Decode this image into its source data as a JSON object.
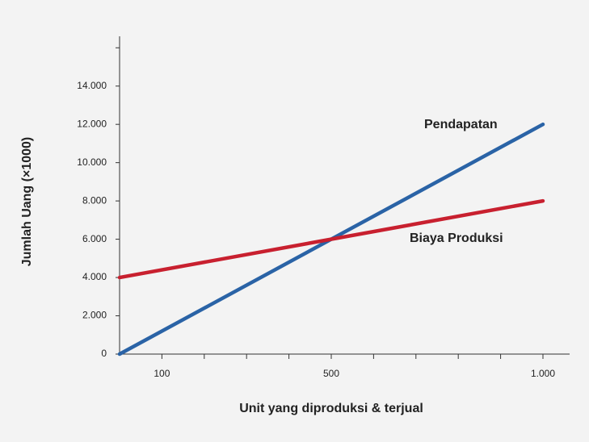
{
  "chart_data": {
    "type": "line",
    "x_label": "Unit yang diproduksi & terjual",
    "y_label": "Jumlah Uang (×1000)",
    "x": [
      0,
      1000
    ],
    "series": [
      {
        "name": "Pendapatan",
        "color": "#2a63a6",
        "values": [
          0,
          12000
        ]
      },
      {
        "name": "Biaya Produksi",
        "color": "#c8202f",
        "values": [
          4000,
          8000
        ]
      }
    ],
    "xlim": [
      0,
      1063
    ],
    "xticks": [
      100,
      500,
      {
        "value": 1000,
        "label": "1.000"
      }
    ],
    "x_minor_ticks": [
      200,
      300,
      400,
      600,
      700,
      800,
      900
    ],
    "ylim": [
      0,
      16600
    ],
    "yticks": [
      0,
      {
        "value": 2000,
        "label": "2.000"
      },
      {
        "value": 4000,
        "label": "4.000"
      },
      {
        "value": 6000,
        "label": "6.000"
      },
      {
        "value": 8000,
        "label": "8.000"
      },
      {
        "value": 10000,
        "label": "10.000"
      },
      {
        "value": 12000,
        "label": "12.000"
      },
      {
        "value": 14000,
        "label": "14.000"
      }
    ],
    "y_minor_ticks": [
      16000
    ],
    "grid": false
  }
}
